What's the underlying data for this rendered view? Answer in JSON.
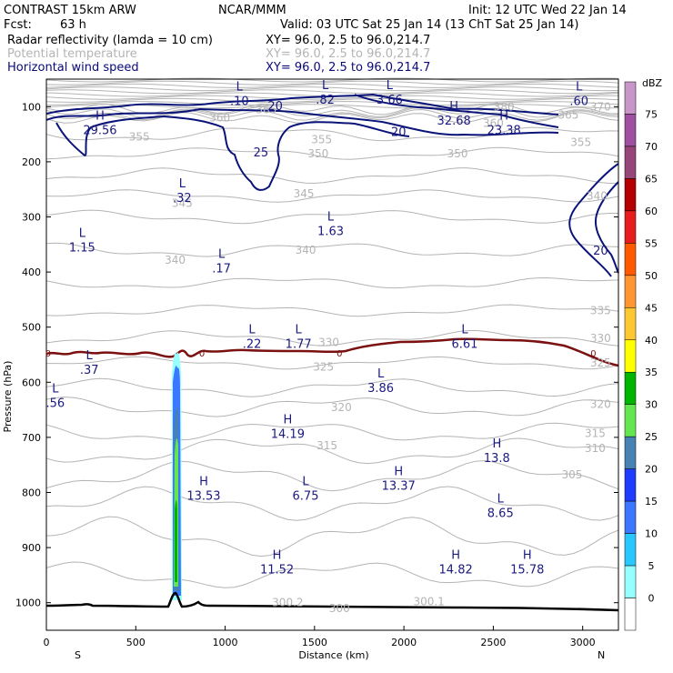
{
  "header": {
    "model": "CONTRAST 15km ARW",
    "institution": "NCAR/MMM",
    "init": "Init: 12 UTC Wed 22 Jan 14",
    "fcst_label": "Fcst:",
    "fcst_value": "63 h",
    "valid": "Valid: 03 UTC Sat 25 Jan 14 (13 ChT Sat 25 Jan 14)",
    "fields": [
      {
        "name": "Radar reflectivity (lamda = 10 cm)",
        "xy": "XY=  96.0,  2.5 to  96.0,214.7",
        "color": "#000000"
      },
      {
        "name": "Potential temperature",
        "xy": "XY=  96.0,  2.5 to  96.0,214.7",
        "color": "#b4b4b4"
      },
      {
        "name": "Horizontal wind speed",
        "xy": "XY=  96.0,  2.5 to  96.0,214.7",
        "color": "#0a0a78"
      }
    ]
  },
  "axes": {
    "xlabel": "Distance (km)",
    "ylabel": "Pressure (hPa)",
    "x_ticks": [
      "0",
      "500",
      "1000",
      "1500",
      "2000",
      "2500",
      "3000"
    ],
    "y_ticks": [
      "100",
      "200",
      "300",
      "400",
      "500",
      "600",
      "700",
      "800",
      "900",
      "1000"
    ],
    "south": "S",
    "north": "N"
  },
  "colorbar": {
    "unit": "dBZ",
    "levels": [
      "75",
      "70",
      "65",
      "60",
      "55",
      "50",
      "45",
      "40",
      "35",
      "30",
      "25",
      "20",
      "15",
      "10",
      "5",
      "0"
    ],
    "colors": [
      "#c896c8",
      "#a050a0",
      "#964678",
      "#b40000",
      "#e61e1e",
      "#ff5a00",
      "#ff9632",
      "#ffc832",
      "#ffff00",
      "#00b400",
      "#64e650",
      "#4682b4",
      "#1e3cff",
      "#3c78ff",
      "#28c8ff",
      "#96ffff",
      "#ffffff"
    ]
  },
  "chart_data": {
    "type": "cross-section",
    "title": "Radar reflectivity, potential temperature, horizontal wind speed",
    "x_range_km": [
      0,
      3200
    ],
    "y_range_hpa": [
      1050,
      50
    ],
    "freezing_level_label": "0",
    "theta_labels": [
      {
        "text": "380",
        "x": 2560,
        "p": 100
      },
      {
        "text": "370",
        "x": 3100,
        "p": 100
      },
      {
        "text": "365",
        "x": 1230,
        "p": 105
      },
      {
        "text": "360",
        "x": 970,
        "p": 120
      },
      {
        "text": "365",
        "x": 2920,
        "p": 115
      },
      {
        "text": "360",
        "x": 2500,
        "p": 130
      },
      {
        "text": "355",
        "x": 520,
        "p": 155
      },
      {
        "text": "355",
        "x": 1540,
        "p": 160
      },
      {
        "text": "350",
        "x": 1520,
        "p": 185
      },
      {
        "text": "350",
        "x": 2300,
        "p": 185
      },
      {
        "text": "355",
        "x": 2990,
        "p": 165
      },
      {
        "text": "345",
        "x": 760,
        "p": 275
      },
      {
        "text": "345",
        "x": 1440,
        "p": 258
      },
      {
        "text": "340",
        "x": 3080,
        "p": 262
      },
      {
        "text": "340",
        "x": 720,
        "p": 378
      },
      {
        "text": "340",
        "x": 1450,
        "p": 360
      },
      {
        "text": "335",
        "x": 3100,
        "p": 470
      },
      {
        "text": "330",
        "x": 1580,
        "p": 528
      },
      {
        "text": "330",
        "x": 3100,
        "p": 520
      },
      {
        "text": "325",
        "x": 1550,
        "p": 572
      },
      {
        "text": "325",
        "x": 3100,
        "p": 565
      },
      {
        "text": "320",
        "x": 1650,
        "p": 646
      },
      {
        "text": "320",
        "x": 3100,
        "p": 640
      },
      {
        "text": "315",
        "x": 1570,
        "p": 715
      },
      {
        "text": "315",
        "x": 3070,
        "p": 693
      },
      {
        "text": "310",
        "x": 3070,
        "p": 720
      },
      {
        "text": "305",
        "x": 2940,
        "p": 768
      },
      {
        "text": "300.2",
        "x": 1350,
        "p": 1000
      },
      {
        "text": "300",
        "x": 1640,
        "p": 1010
      },
      {
        "text": "300.1",
        "x": 2140,
        "p": 998
      }
    ],
    "wind_contours": [
      20,
      25
    ],
    "wind_labels": [
      {
        "text": "20",
        "x": 1280,
        "p": 98
      },
      {
        "text": "20",
        "x": 1970,
        "p": 145
      },
      {
        "text": "25",
        "x": 1200,
        "p": 182
      },
      {
        "text": "20",
        "x": 3100,
        "p": 360
      }
    ],
    "extrema": [
      {
        "kind": "L",
        "value": ".10",
        "x": 1080,
        "p": 82
      },
      {
        "kind": "L",
        "value": ".82",
        "x": 1560,
        "p": 80
      },
      {
        "kind": "L",
        "value": "3.66",
        "x": 1920,
        "p": 80
      },
      {
        "kind": "L",
        "value": ".60",
        "x": 2980,
        "p": 82
      },
      {
        "kind": "H",
        "value": "29.56",
        "x": 300,
        "p": 135
      },
      {
        "kind": "H",
        "value": "32.68",
        "x": 2280,
        "p": 118
      },
      {
        "kind": "H",
        "value": "23.38",
        "x": 2560,
        "p": 135
      },
      {
        "kind": "L",
        "value": ".32",
        "x": 760,
        "p": 258
      },
      {
        "kind": "L",
        "value": "1.63",
        "x": 1590,
        "p": 318
      },
      {
        "kind": "L",
        "value": "1.15",
        "x": 200,
        "p": 348
      },
      {
        "kind": "L",
        "value": ".17",
        "x": 980,
        "p": 386
      },
      {
        "kind": "L",
        "value": ".22",
        "x": 1150,
        "p": 523
      },
      {
        "kind": "L",
        "value": "1.77",
        "x": 1410,
        "p": 523
      },
      {
        "kind": "L",
        "value": "6.61",
        "x": 2340,
        "p": 523
      },
      {
        "kind": "L",
        "value": ".37",
        "x": 240,
        "p": 570
      },
      {
        "kind": "L",
        "value": "3.86",
        "x": 1870,
        "p": 603
      },
      {
        "kind": "L",
        "value": ".56",
        "x": 50,
        "p": 630
      },
      {
        "kind": "H",
        "value": "14.19",
        "x": 1350,
        "p": 686
      },
      {
        "kind": "H",
        "value": "13.8",
        "x": 2520,
        "p": 730
      },
      {
        "kind": "H",
        "value": "13.37",
        "x": 1970,
        "p": 780
      },
      {
        "kind": "H",
        "value": "13.53",
        "x": 880,
        "p": 798
      },
      {
        "kind": "L",
        "value": "6.75",
        "x": 1450,
        "p": 798
      },
      {
        "kind": "L",
        "value": "8.65",
        "x": 2540,
        "p": 830
      },
      {
        "kind": "H",
        "value": "11.52",
        "x": 1290,
        "p": 932
      },
      {
        "kind": "H",
        "value": "14.82",
        "x": 2290,
        "p": 932
      },
      {
        "kind": "H",
        "value": "15.78",
        "x": 2690,
        "p": 932
      }
    ],
    "reflectivity_column": {
      "x_km": 730,
      "top_hpa": 535,
      "bottom_hpa": 985,
      "max_dbz": 35
    }
  }
}
